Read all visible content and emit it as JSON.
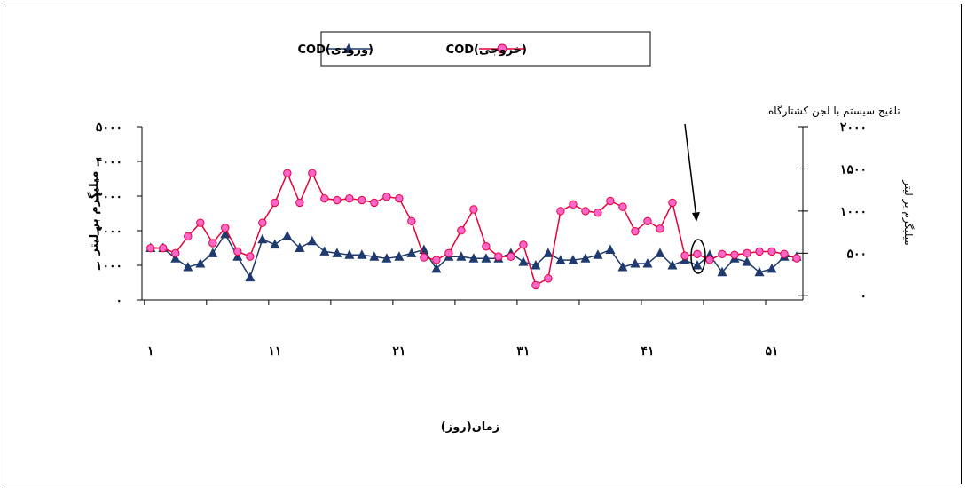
{
  "chart_data": {
    "type": "line",
    "xlabel": "زمان(روز)",
    "ylabel_left": "میلیگرم بر لیتر",
    "ylabel_right": "میلیگرم بر لیتر",
    "annotation": "تلقیح سیستم با لجن کشتارگاه",
    "legend_placement": "top-center",
    "x_ticks": [
      "۱",
      "۱۱",
      "۲۱",
      "۳۱",
      "۴۱",
      "۵۱"
    ],
    "x_tick_values": [
      1,
      11,
      21,
      31,
      41,
      51
    ],
    "xlim": [
      0.3,
      53.5
    ],
    "y_left_ticks": [
      "۰",
      "۱۰۰۰",
      "۲۰۰۰",
      "۳۰۰۰",
      "۴۰۰۰",
      "۵۰۰۰"
    ],
    "y_left_tick_values": [
      0,
      1000,
      2000,
      3000,
      4000,
      5000
    ],
    "ylim_left": [
      0,
      5000
    ],
    "y_right_ticks": [
      "۰",
      "۵۰۰",
      "۱۰۰۰",
      "۱۵۰۰",
      "۲۰۰۰"
    ],
    "y_right_tick_values": [
      0,
      500,
      1000,
      1500,
      2000
    ],
    "ylim_right": [
      -55,
      2000
    ],
    "series": [
      {
        "name": "COD(ورودی)",
        "axis": "left",
        "color": "#1f3a6e",
        "marker": "triangle",
        "x": [
          1,
          2,
          3,
          4,
          5,
          6,
          7,
          8,
          9,
          10,
          11,
          12,
          13,
          14,
          15,
          16,
          17,
          18,
          19,
          20,
          21,
          22,
          23,
          24,
          25,
          26,
          27,
          28,
          29,
          30,
          31,
          32,
          33,
          34,
          35,
          36,
          37,
          38,
          39,
          40,
          41,
          42,
          43,
          44,
          45,
          46,
          47,
          48,
          49,
          50,
          51,
          52,
          53
        ],
        "values": [
          1500,
          1500,
          1200,
          950,
          1050,
          1350,
          1900,
          1250,
          650,
          1750,
          1600,
          1850,
          1500,
          1700,
          1400,
          1350,
          1300,
          1300,
          1250,
          1200,
          1250,
          1350,
          1450,
          900,
          1250,
          1250,
          1200,
          1200,
          1200,
          1350,
          1100,
          1000,
          1350,
          1150,
          1150,
          1200,
          1300,
          1450,
          950,
          1050,
          1050,
          1350,
          1000,
          1150,
          1000,
          1300,
          800,
          1200,
          1100,
          800,
          900,
          1250,
          1250
        ]
      },
      {
        "name": "COD(خروجی)",
        "axis": "right",
        "color": "#e8003c",
        "marker": "circle",
        "x": [
          1,
          2,
          3,
          4,
          5,
          6,
          7,
          8,
          9,
          10,
          11,
          12,
          13,
          14,
          15,
          16,
          17,
          18,
          19,
          20,
          21,
          22,
          23,
          24,
          25,
          26,
          27,
          28,
          29,
          30,
          31,
          32,
          33,
          34,
          35,
          36,
          37,
          38,
          39,
          40,
          41,
          42,
          43,
          44,
          45,
          46,
          47,
          48,
          49,
          50,
          51,
          52,
          53
        ],
        "values": [
          560,
          560,
          500,
          700,
          860,
          620,
          800,
          520,
          460,
          860,
          1100,
          1450,
          1100,
          1450,
          1150,
          1130,
          1150,
          1130,
          1100,
          1170,
          1150,
          880,
          450,
          420,
          500,
          770,
          1020,
          580,
          460,
          460,
          600,
          120,
          200,
          1000,
          1080,
          1000,
          980,
          1120,
          1050,
          760,
          880,
          790,
          1100,
          470,
          490,
          420,
          490,
          480,
          500,
          520,
          520,
          490,
          440
        ]
      }
    ]
  }
}
